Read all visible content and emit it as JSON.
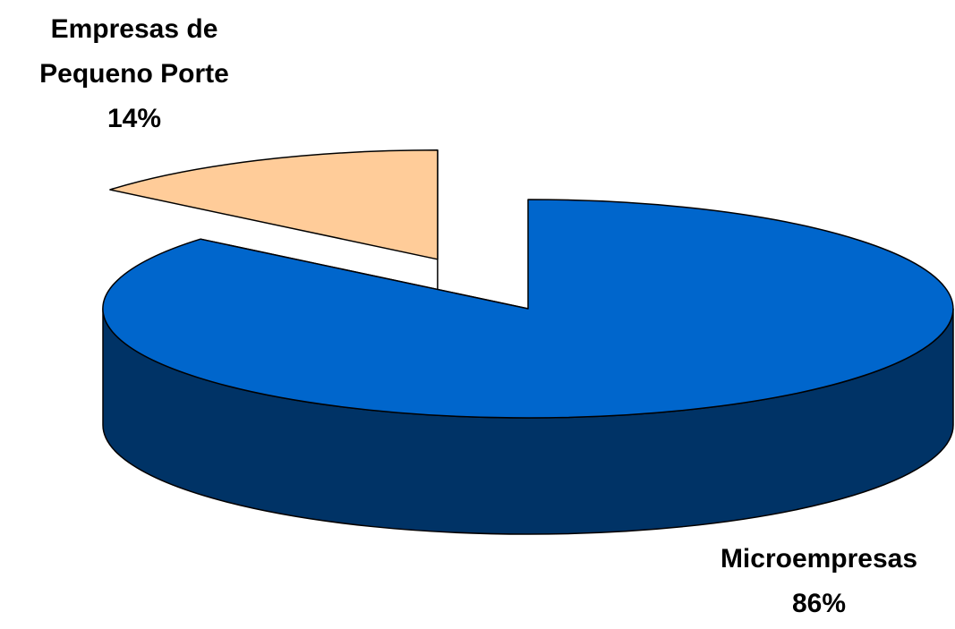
{
  "chart_data": {
    "type": "pie",
    "style": "3d",
    "categories": [
      "Microempresas",
      "Empresas de Pequeno Porte"
    ],
    "values": [
      86,
      14
    ],
    "value_labels": [
      "86%",
      "14%"
    ],
    "colors": [
      "#0066CC",
      "#FFCC99"
    ],
    "side_colors": [
      "#003366",
      "#806448"
    ],
    "exploded": [
      false,
      true
    ]
  }
}
